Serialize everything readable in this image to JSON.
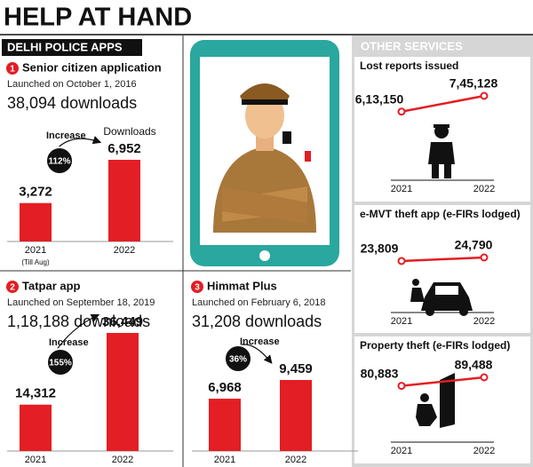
{
  "header": {
    "title": "HELP AT HAND",
    "left_section": "DELHI POLICE APPS",
    "right_section": "OTHER SERVICES"
  },
  "chart_data": [
    {
      "type": "bar",
      "number": "1",
      "title": "Senior citizen application",
      "subtitle": "Launched on October 1, 2016",
      "downloads": "38,094 downloads",
      "increase_label": "Increase",
      "increase": "112%",
      "values_label": "Downloads",
      "categories": [
        "2021",
        "2022"
      ],
      "category_notes": [
        "(Till Aug)",
        null
      ],
      "values": [
        3272,
        6952
      ],
      "value_labels": [
        "3,272",
        "6,952"
      ],
      "color": "#e31e24"
    },
    {
      "type": "bar",
      "number": "2",
      "title": "Tatpar app",
      "subtitle": "Launched on September 18, 2019",
      "downloads": "1,18,188 downloads",
      "increase_label": "Increase",
      "increase": "155%",
      "categories": [
        "2021",
        "2022"
      ],
      "values": [
        14312,
        36449
      ],
      "value_labels": [
        "14,312",
        "36,449"
      ],
      "color": "#e31e24"
    },
    {
      "type": "bar",
      "number": "3",
      "title": "Himmat Plus",
      "subtitle": "Launched on February 6, 2018",
      "downloads": "31,208 downloads",
      "increase_label": "Increase",
      "increase": "36%",
      "categories": [
        "2021",
        "2022"
      ],
      "values": [
        6968,
        9459
      ],
      "value_labels": [
        "6,968",
        "9,459"
      ],
      "color": "#e31e24"
    },
    {
      "type": "line",
      "title": "Lost reports issued",
      "categories": [
        "2021",
        "2022"
      ],
      "values": [
        613150,
        745128
      ],
      "value_labels": [
        "6,13,150",
        "7,45,128"
      ],
      "color": "#e31e24"
    },
    {
      "type": "line",
      "title": "e-MVT theft app (e-FIRs lodged)",
      "categories": [
        "2021",
        "2022"
      ],
      "values": [
        23809,
        24790
      ],
      "value_labels": [
        "23,809",
        "24,790"
      ],
      "color": "#e31e24"
    },
    {
      "type": "line",
      "title": "Property theft (e-FIRs lodged)",
      "categories": [
        "2021",
        "2022"
      ],
      "values": [
        80883,
        89488
      ],
      "value_labels": [
        "80,883",
        "89,488"
      ],
      "color": "#e31e24"
    }
  ]
}
